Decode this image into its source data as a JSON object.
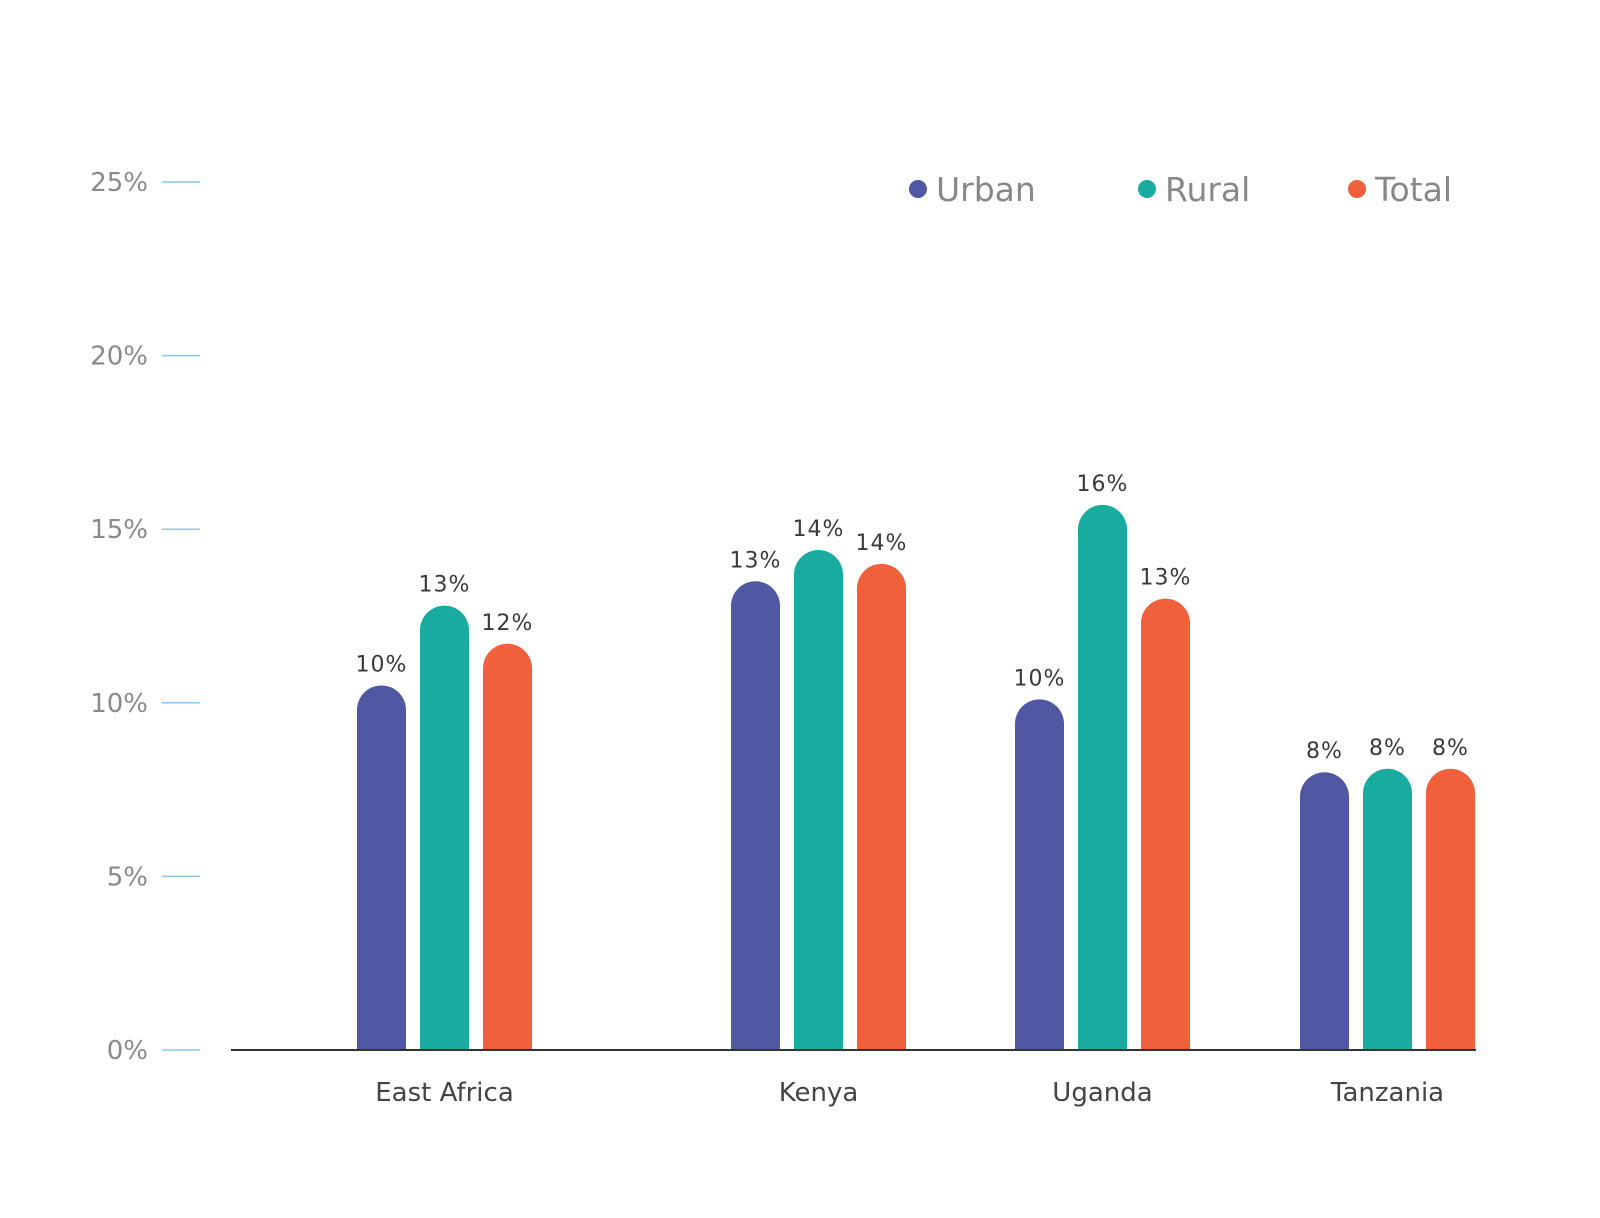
{
  "chart_data": {
    "type": "bar",
    "title": "",
    "xlabel": "",
    "ylabel": "",
    "ylim": [
      0,
      25
    ],
    "yticks": [
      0,
      5,
      10,
      15,
      20,
      25
    ],
    "ytick_labels": [
      "0%",
      "5%",
      "10%",
      "15%",
      "20%",
      "25%"
    ],
    "categories": [
      "East Africa",
      "Kenya",
      "Uganda",
      "Tanzania"
    ],
    "legend_position": "top-right",
    "series": [
      {
        "name": "Urban",
        "color": "#5057a3",
        "values": [
          10.5,
          13.5,
          10.1,
          8.0
        ],
        "labels": [
          "10%",
          "13%",
          "10%",
          "8%"
        ]
      },
      {
        "name": "Rural",
        "color": "#1aaba0",
        "values": [
          12.8,
          14.4,
          15.7,
          8.1
        ],
        "labels": [
          "13%",
          "14%",
          "16%",
          "8%"
        ]
      },
      {
        "name": "Total",
        "color": "#f0603a",
        "values": [
          11.7,
          14.0,
          13.0,
          8.1
        ],
        "labels": [
          "12%",
          "14%",
          "13%",
          "8%"
        ]
      }
    ]
  }
}
